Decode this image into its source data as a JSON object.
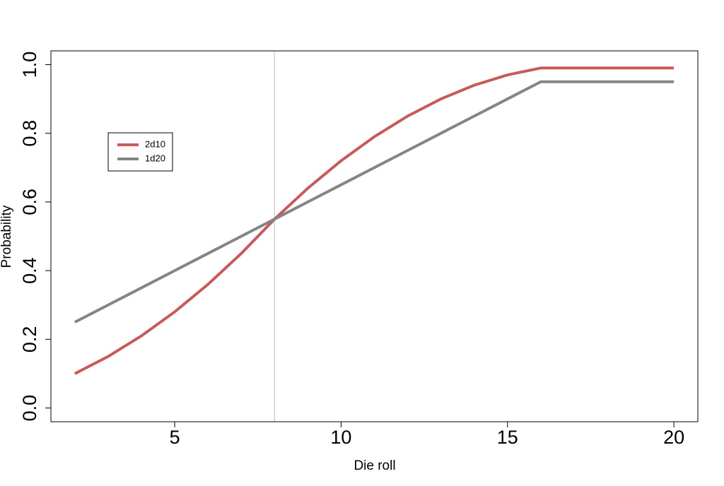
{
  "chart_data": {
    "type": "line",
    "x_label": "Die roll",
    "y_label": "Probability",
    "x": [
      2,
      3,
      4,
      5,
      6,
      7,
      8,
      9,
      10,
      11,
      12,
      13,
      14,
      15,
      16,
      17,
      18,
      19,
      20
    ],
    "series": [
      {
        "name": "2d10",
        "color": "#c75b5b",
        "values": [
          0.1,
          0.15,
          0.21,
          0.28,
          0.36,
          0.45,
          0.55,
          0.64,
          0.72,
          0.79,
          0.85,
          0.9,
          0.94,
          0.97,
          0.99,
          0.99,
          0.99,
          0.99,
          0.99
        ]
      },
      {
        "name": "1d20",
        "color": "#858585",
        "values": [
          0.25,
          0.3,
          0.35,
          0.4,
          0.45,
          0.5,
          0.55,
          0.6,
          0.65,
          0.7,
          0.75,
          0.8,
          0.85,
          0.9,
          0.95,
          0.95,
          0.95,
          0.95,
          0.95
        ]
      }
    ],
    "reference_line": {
      "x": 8,
      "color": "#d3d3d3"
    },
    "xlim": [
      1.28,
      20.72
    ],
    "xticks": [
      5,
      10,
      15,
      20
    ],
    "ylim": [
      -0.04,
      1.04
    ],
    "yticks": [
      {
        "value": 0,
        "label": "0.0"
      },
      0.2,
      0.4,
      0.6,
      0.8,
      {
        "value": 1,
        "label": "1.0"
      }
    ],
    "legend": "top-left"
  }
}
